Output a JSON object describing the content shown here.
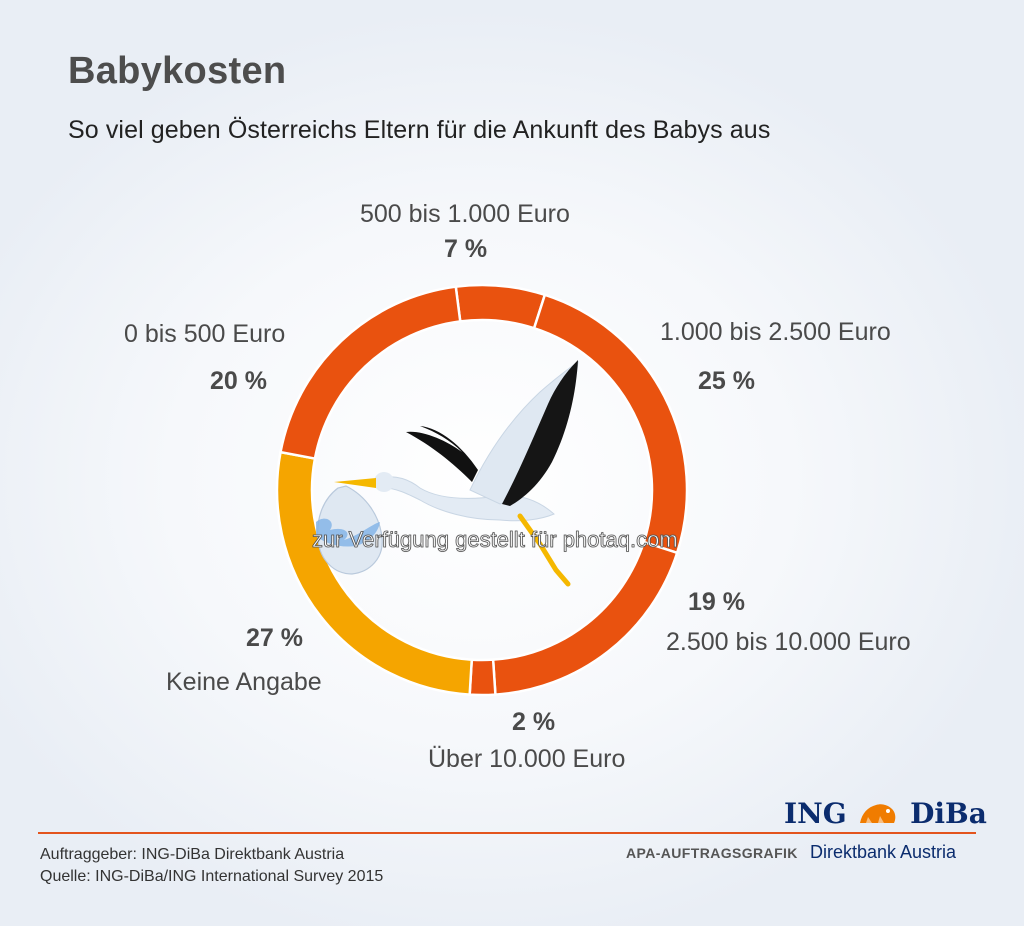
{
  "chart_data": {
    "type": "donut",
    "title": "Babykosten",
    "subtitle": "So viel geben Österreichs Eltern für die Ankunft des Babys aus",
    "slices": [
      {
        "label": "500 bis 1.000 Euro",
        "value": 7,
        "display": "7 %",
        "color": "#e9520f"
      },
      {
        "label": "1.000 bis 2.500 Euro",
        "value": 25,
        "display": "25 %",
        "color": "#e9520f"
      },
      {
        "label": "2.500 bis 10.000 Euro",
        "value": 19,
        "display": "19 %",
        "color": "#e9520f"
      },
      {
        "label": "Über 10.000 Euro",
        "value": 2,
        "display": "2 %",
        "color": "#e9520f"
      },
      {
        "label": "Keine Angabe",
        "value": 27,
        "display": "27 %",
        "color": "#f5a500"
      },
      {
        "label": "0 bis 500 Euro",
        "value": 20,
        "display": "20 %",
        "color": "#e9520f"
      }
    ]
  },
  "watermark": "zur Verfügung gestellt für photaq.com",
  "footer": {
    "client": "Auftraggeber: ING-DiBa Direktbank Austria",
    "source": "Quelle: ING-DiBa/ING International Survey 2015",
    "apa": "APA-AUFTRAGSGRAFIK",
    "brand_left": "ING",
    "brand_right": "DiBa",
    "bank": "Direktbank Austria"
  },
  "colors": {
    "accent": "#e9520f",
    "secondary": "#f5a500",
    "brand": "#0b2c6e"
  }
}
